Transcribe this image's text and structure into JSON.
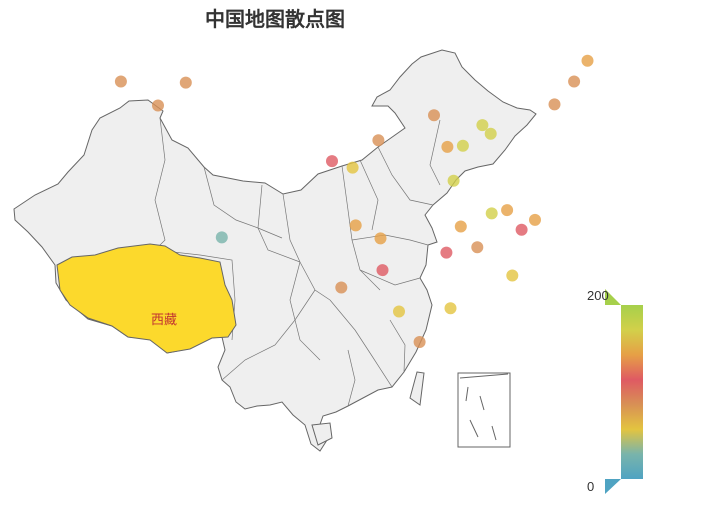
{
  "title": "中国地图散点图",
  "highlight_region": {
    "name": "西藏",
    "fill": "#fcd92c",
    "label_color": "#c23531"
  },
  "map": {
    "fill": "#efefef",
    "stroke": "#666666"
  },
  "visual_map": {
    "max": 200,
    "min": 0,
    "max_label": "200",
    "min_label": "0",
    "colors": [
      "#a6d04b",
      "#d2d04a",
      "#e6a046",
      "#df5a63",
      "#d89055",
      "#e3c440",
      "#79b4ab",
      "#4fa3c2"
    ]
  },
  "chart_data": {
    "type": "scatter",
    "title": "中国地图散点图",
    "value_range": [
      0,
      200
    ],
    "points": [
      {
        "lon": 81.3,
        "lat": 43.9,
        "value": 90
      },
      {
        "lon": 87.6,
        "lat": 43.8,
        "value": 85
      },
      {
        "lon": 84.9,
        "lat": 41.7,
        "value": 100
      },
      {
        "lon": 91.1,
        "lat": 29.6,
        "value": 20
      },
      {
        "lon": 101.8,
        "lat": 36.6,
        "value": 110
      },
      {
        "lon": 103.8,
        "lat": 36.0,
        "value": 60
      },
      {
        "lon": 106.3,
        "lat": 38.5,
        "value": 75
      },
      {
        "lon": 111.7,
        "lat": 40.8,
        "value": 95
      },
      {
        "lon": 113.0,
        "lat": 37.9,
        "value": 150
      },
      {
        "lon": 114.5,
        "lat": 38.0,
        "value": 170
      },
      {
        "lon": 116.4,
        "lat": 39.9,
        "value": 175
      },
      {
        "lon": 117.2,
        "lat": 39.1,
        "value": 160
      },
      {
        "lon": 118.8,
        "lat": 32.1,
        "value": 140
      },
      {
        "lon": 121.5,
        "lat": 31.2,
        "value": 130
      },
      {
        "lon": 120.2,
        "lat": 30.3,
        "value": 110
      },
      {
        "lon": 117.3,
        "lat": 31.8,
        "value": 165
      },
      {
        "lon": 113.6,
        "lat": 34.8,
        "value": 180
      },
      {
        "lon": 114.3,
        "lat": 30.6,
        "value": 145
      },
      {
        "lon": 112.9,
        "lat": 28.2,
        "value": 125
      },
      {
        "lon": 113.3,
        "lat": 23.1,
        "value": 70
      },
      {
        "lon": 108.3,
        "lat": 22.8,
        "value": 65
      },
      {
        "lon": 110.3,
        "lat": 20.0,
        "value": 85
      },
      {
        "lon": 106.5,
        "lat": 29.5,
        "value": 150
      },
      {
        "lon": 104.1,
        "lat": 30.7,
        "value": 135
      },
      {
        "lon": 106.7,
        "lat": 26.6,
        "value": 120
      },
      {
        "lon": 102.7,
        "lat": 25.0,
        "value": 90
      },
      {
        "lon": 125.3,
        "lat": 43.9,
        "value": 95
      },
      {
        "lon": 126.6,
        "lat": 45.8,
        "value": 155
      },
      {
        "lon": 123.4,
        "lat": 41.8,
        "value": 100
      },
      {
        "lon": 119.3,
        "lat": 26.1,
        "value": 60
      },
      {
        "lon": 115.9,
        "lat": 28.7,
        "value": 85
      }
    ]
  }
}
